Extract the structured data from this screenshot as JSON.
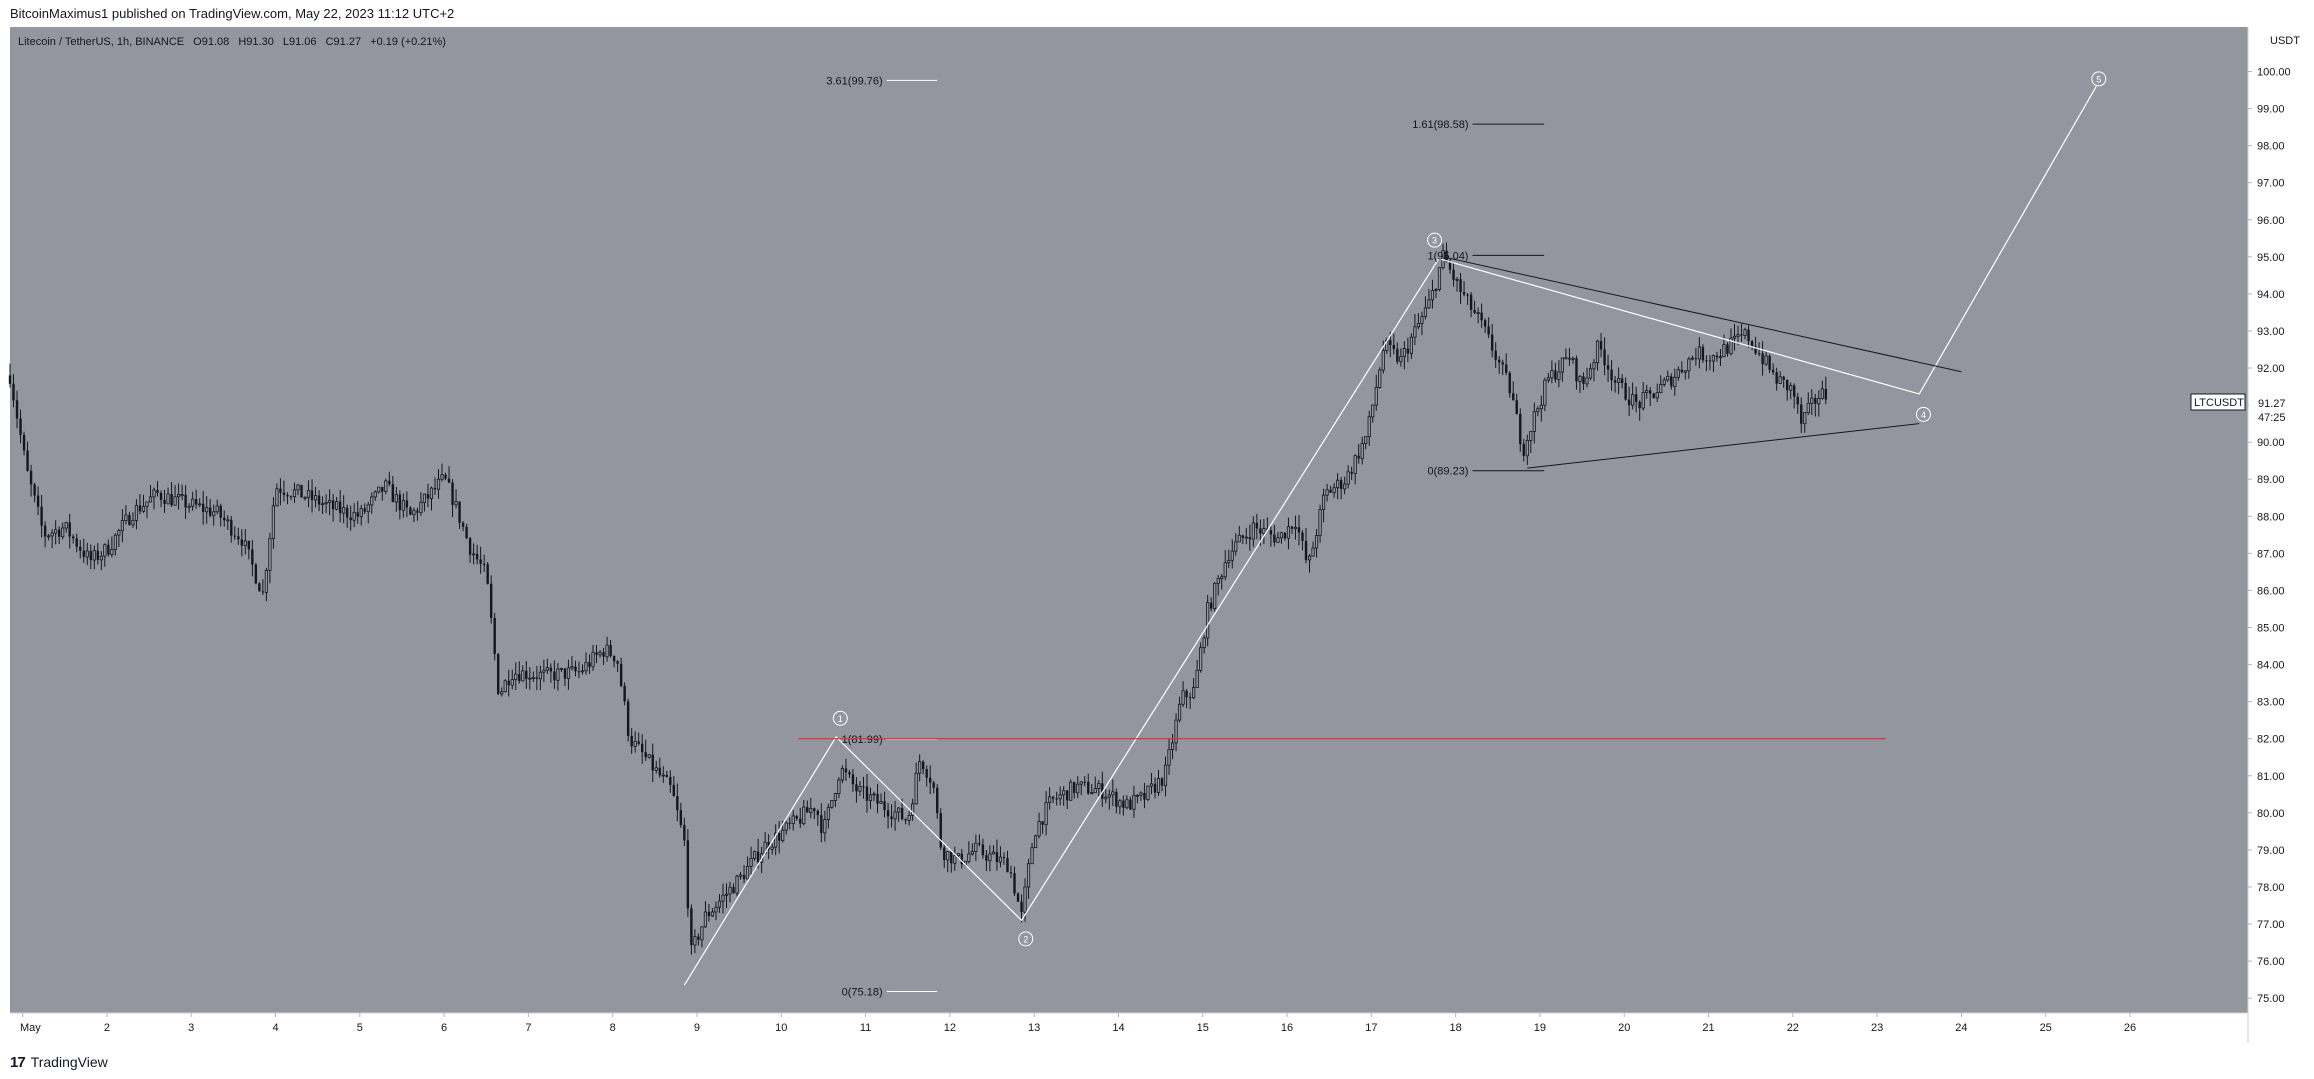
{
  "header": {
    "published": "BitcoinMaximus1 published on TradingView.com, May 22, 2023 11:12 UTC+2"
  },
  "legend": {
    "symbol": "Litecoin / TetherUS, 1h, BINANCE",
    "o_label": "O",
    "o": "91.08",
    "h_label": "H",
    "h": "91.30",
    "l_label": "L",
    "l": "91.06",
    "c_label": "C",
    "c": "91.27",
    "change": "+0.19 (+0.21%)"
  },
  "footer": {
    "brand": "TradingView",
    "logo_mark": "17"
  },
  "colors": {
    "plot_bg": "#93969f",
    "candle": "#131722",
    "wave": "#ffffff",
    "triangle": "#131722",
    "resistance": "#e0312f",
    "axis_text": "#131722"
  },
  "chart_data": {
    "type": "candlestick",
    "symbol": "LTCUSDT",
    "timeframe": "1h",
    "exchange": "BINANCE",
    "y_unit": "USDT",
    "ylim": [
      74.6,
      101.2
    ],
    "y_ticks": [
      "75.00",
      "76.00",
      "77.00",
      "78.00",
      "79.00",
      "80.00",
      "81.00",
      "82.00",
      "83.00",
      "84.00",
      "85.00",
      "86.00",
      "87.00",
      "88.00",
      "89.00",
      "90.00",
      "91.00",
      "92.00",
      "93.00",
      "94.00",
      "95.00",
      "96.00",
      "97.00",
      "98.00",
      "99.00",
      "100.00"
    ],
    "xlim": [
      0.85,
      27.4
    ],
    "x_ticks": [
      {
        "day": 1,
        "label": "May"
      },
      {
        "day": 2,
        "label": "2"
      },
      {
        "day": 3,
        "label": "3"
      },
      {
        "day": 4,
        "label": "4"
      },
      {
        "day": 5,
        "label": "5"
      },
      {
        "day": 6,
        "label": "6"
      },
      {
        "day": 7,
        "label": "7"
      },
      {
        "day": 8,
        "label": "8"
      },
      {
        "day": 9,
        "label": "9"
      },
      {
        "day": 10,
        "label": "10"
      },
      {
        "day": 11,
        "label": "11"
      },
      {
        "day": 12,
        "label": "12"
      },
      {
        "day": 13,
        "label": "13"
      },
      {
        "day": 14,
        "label": "14"
      },
      {
        "day": 15,
        "label": "15"
      },
      {
        "day": 16,
        "label": "16"
      },
      {
        "day": 17,
        "label": "17"
      },
      {
        "day": 18,
        "label": "18"
      },
      {
        "day": 19,
        "label": "19"
      },
      {
        "day": 20,
        "label": "20"
      },
      {
        "day": 21,
        "label": "21"
      },
      {
        "day": 22,
        "label": "22"
      },
      {
        "day": 23,
        "label": "23"
      },
      {
        "day": 24,
        "label": "24"
      },
      {
        "day": 25,
        "label": "25"
      },
      {
        "day": 26,
        "label": "26"
      }
    ],
    "price_path": [
      [
        0.85,
        91.8
      ],
      [
        1.05,
        89.2
      ],
      [
        1.25,
        87.5
      ],
      [
        1.5,
        87.7
      ],
      [
        1.8,
        86.8
      ],
      [
        2.0,
        87.1
      ],
      [
        2.3,
        88.1
      ],
      [
        2.6,
        88.6
      ],
      [
        3.0,
        88.3
      ],
      [
        3.3,
        88.1
      ],
      [
        3.6,
        87.4
      ],
      [
        3.85,
        85.9
      ],
      [
        4.0,
        88.8
      ],
      [
        4.3,
        88.6
      ],
      [
        4.7,
        88.2
      ],
      [
        5.0,
        88.0
      ],
      [
        5.3,
        88.8
      ],
      [
        5.6,
        88.0
      ],
      [
        6.0,
        89.0
      ],
      [
        6.1,
        88.5
      ],
      [
        6.3,
        87.2
      ],
      [
        6.5,
        86.4
      ],
      [
        6.65,
        83.2
      ],
      [
        6.8,
        83.8
      ],
      [
        7.2,
        83.7
      ],
      [
        7.6,
        83.8
      ],
      [
        7.9,
        84.4
      ],
      [
        8.05,
        84.2
      ],
      [
        8.2,
        82.0
      ],
      [
        8.45,
        81.3
      ],
      [
        8.7,
        80.6
      ],
      [
        8.85,
        79.2
      ],
      [
        8.93,
        76.2
      ],
      [
        9.1,
        77.2
      ],
      [
        9.5,
        78.2
      ],
      [
        9.8,
        79.1
      ],
      [
        10.2,
        79.8
      ],
      [
        10.4,
        80.2
      ],
      [
        10.5,
        79.5
      ],
      [
        10.7,
        81.2
      ],
      [
        10.9,
        80.6
      ],
      [
        11.2,
        80.2
      ],
      [
        11.5,
        79.8
      ],
      [
        11.65,
        81.5
      ],
      [
        11.8,
        80.8
      ],
      [
        11.9,
        79.0
      ],
      [
        12.1,
        78.7
      ],
      [
        12.3,
        79.0
      ],
      [
        12.5,
        78.8
      ],
      [
        12.7,
        78.6
      ],
      [
        12.85,
        77.2
      ],
      [
        13.0,
        79.5
      ],
      [
        13.2,
        80.3
      ],
      [
        13.5,
        80.7
      ],
      [
        13.8,
        80.6
      ],
      [
        14.1,
        80.2
      ],
      [
        14.3,
        80.4
      ],
      [
        14.55,
        81.0
      ],
      [
        14.75,
        83.1
      ],
      [
        14.9,
        83.3
      ],
      [
        15.05,
        85.4
      ],
      [
        15.3,
        87.0
      ],
      [
        15.6,
        87.7
      ],
      [
        15.9,
        87.4
      ],
      [
        16.1,
        87.9
      ],
      [
        16.25,
        86.6
      ],
      [
        16.45,
        88.6
      ],
      [
        16.7,
        89.0
      ],
      [
        16.95,
        90.2
      ],
      [
        17.15,
        92.6
      ],
      [
        17.35,
        92.2
      ],
      [
        17.5,
        92.9
      ],
      [
        17.7,
        93.8
      ],
      [
        17.85,
        95.0
      ],
      [
        18.05,
        94.1
      ],
      [
        18.3,
        93.2
      ],
      [
        18.5,
        92.2
      ],
      [
        18.65,
        91.4
      ],
      [
        18.8,
        89.8
      ],
      [
        18.95,
        90.8
      ],
      [
        19.1,
        91.7
      ],
      [
        19.35,
        92.3
      ],
      [
        19.5,
        91.5
      ],
      [
        19.7,
        92.6
      ],
      [
        19.9,
        91.6
      ],
      [
        20.15,
        91.0
      ],
      [
        20.4,
        91.4
      ],
      [
        20.6,
        91.8
      ],
      [
        20.85,
        92.4
      ],
      [
        21.05,
        92.3
      ],
      [
        21.25,
        92.6
      ],
      [
        21.45,
        92.9
      ],
      [
        21.6,
        92.4
      ],
      [
        21.8,
        91.7
      ],
      [
        22.0,
        91.4
      ],
      [
        22.1,
        90.5
      ],
      [
        22.2,
        90.9
      ],
      [
        22.32,
        91.3
      ],
      [
        22.42,
        91.27
      ]
    ],
    "annotations": {
      "fib_levels": [
        {
          "label": "3.61(99.76)",
          "value": 99.76,
          "x0": 11.25,
          "x1": 11.85,
          "color": "white"
        },
        {
          "label": "1(81.99)",
          "value": 81.99,
          "x0": 11.25,
          "x1": 11.85,
          "color": "white"
        },
        {
          "label": "0(75.18)",
          "value": 75.18,
          "x0": 11.25,
          "x1": 11.85,
          "color": "white"
        },
        {
          "label": "1.61(98.58)",
          "value": 98.58,
          "x0": 18.2,
          "x1": 19.05,
          "color": "black"
        },
        {
          "label": "1(95.04)",
          "value": 95.04,
          "x0": 18.2,
          "x1": 19.05,
          "color": "black"
        },
        {
          "label": "0(89.23)",
          "value": 89.23,
          "x0": 18.2,
          "x1": 19.05,
          "color": "black"
        }
      ],
      "wave_path": [
        [
          8.85,
          75.35
        ],
        [
          10.65,
          82.05
        ],
        [
          12.85,
          77.1
        ],
        [
          17.8,
          94.95
        ],
        [
          23.5,
          91.3
        ],
        [
          25.6,
          99.6
        ]
      ],
      "wave_labels": [
        {
          "label": "1",
          "x": 10.7,
          "y": 82.55
        },
        {
          "label": "2",
          "x": 12.9,
          "y": 76.6
        },
        {
          "label": "3",
          "x": 17.75,
          "y": 95.45
        },
        {
          "label": "4",
          "x": 23.55,
          "y": 90.75
        },
        {
          "label": "5",
          "x": 25.63,
          "y": 99.8
        }
      ],
      "triangle_lines": [
        {
          "from": [
            17.85,
            95.0
          ],
          "to": [
            24.0,
            91.9
          ]
        },
        {
          "from": [
            18.85,
            89.3
          ],
          "to": [
            23.5,
            90.5
          ]
        }
      ],
      "resistance_line": {
        "value": 82.0,
        "x0": 10.2,
        "x1": 23.1
      },
      "price_tag": {
        "symbol": "LTCUSDT",
        "price": "91.27",
        "countdown": "47:25"
      }
    }
  }
}
